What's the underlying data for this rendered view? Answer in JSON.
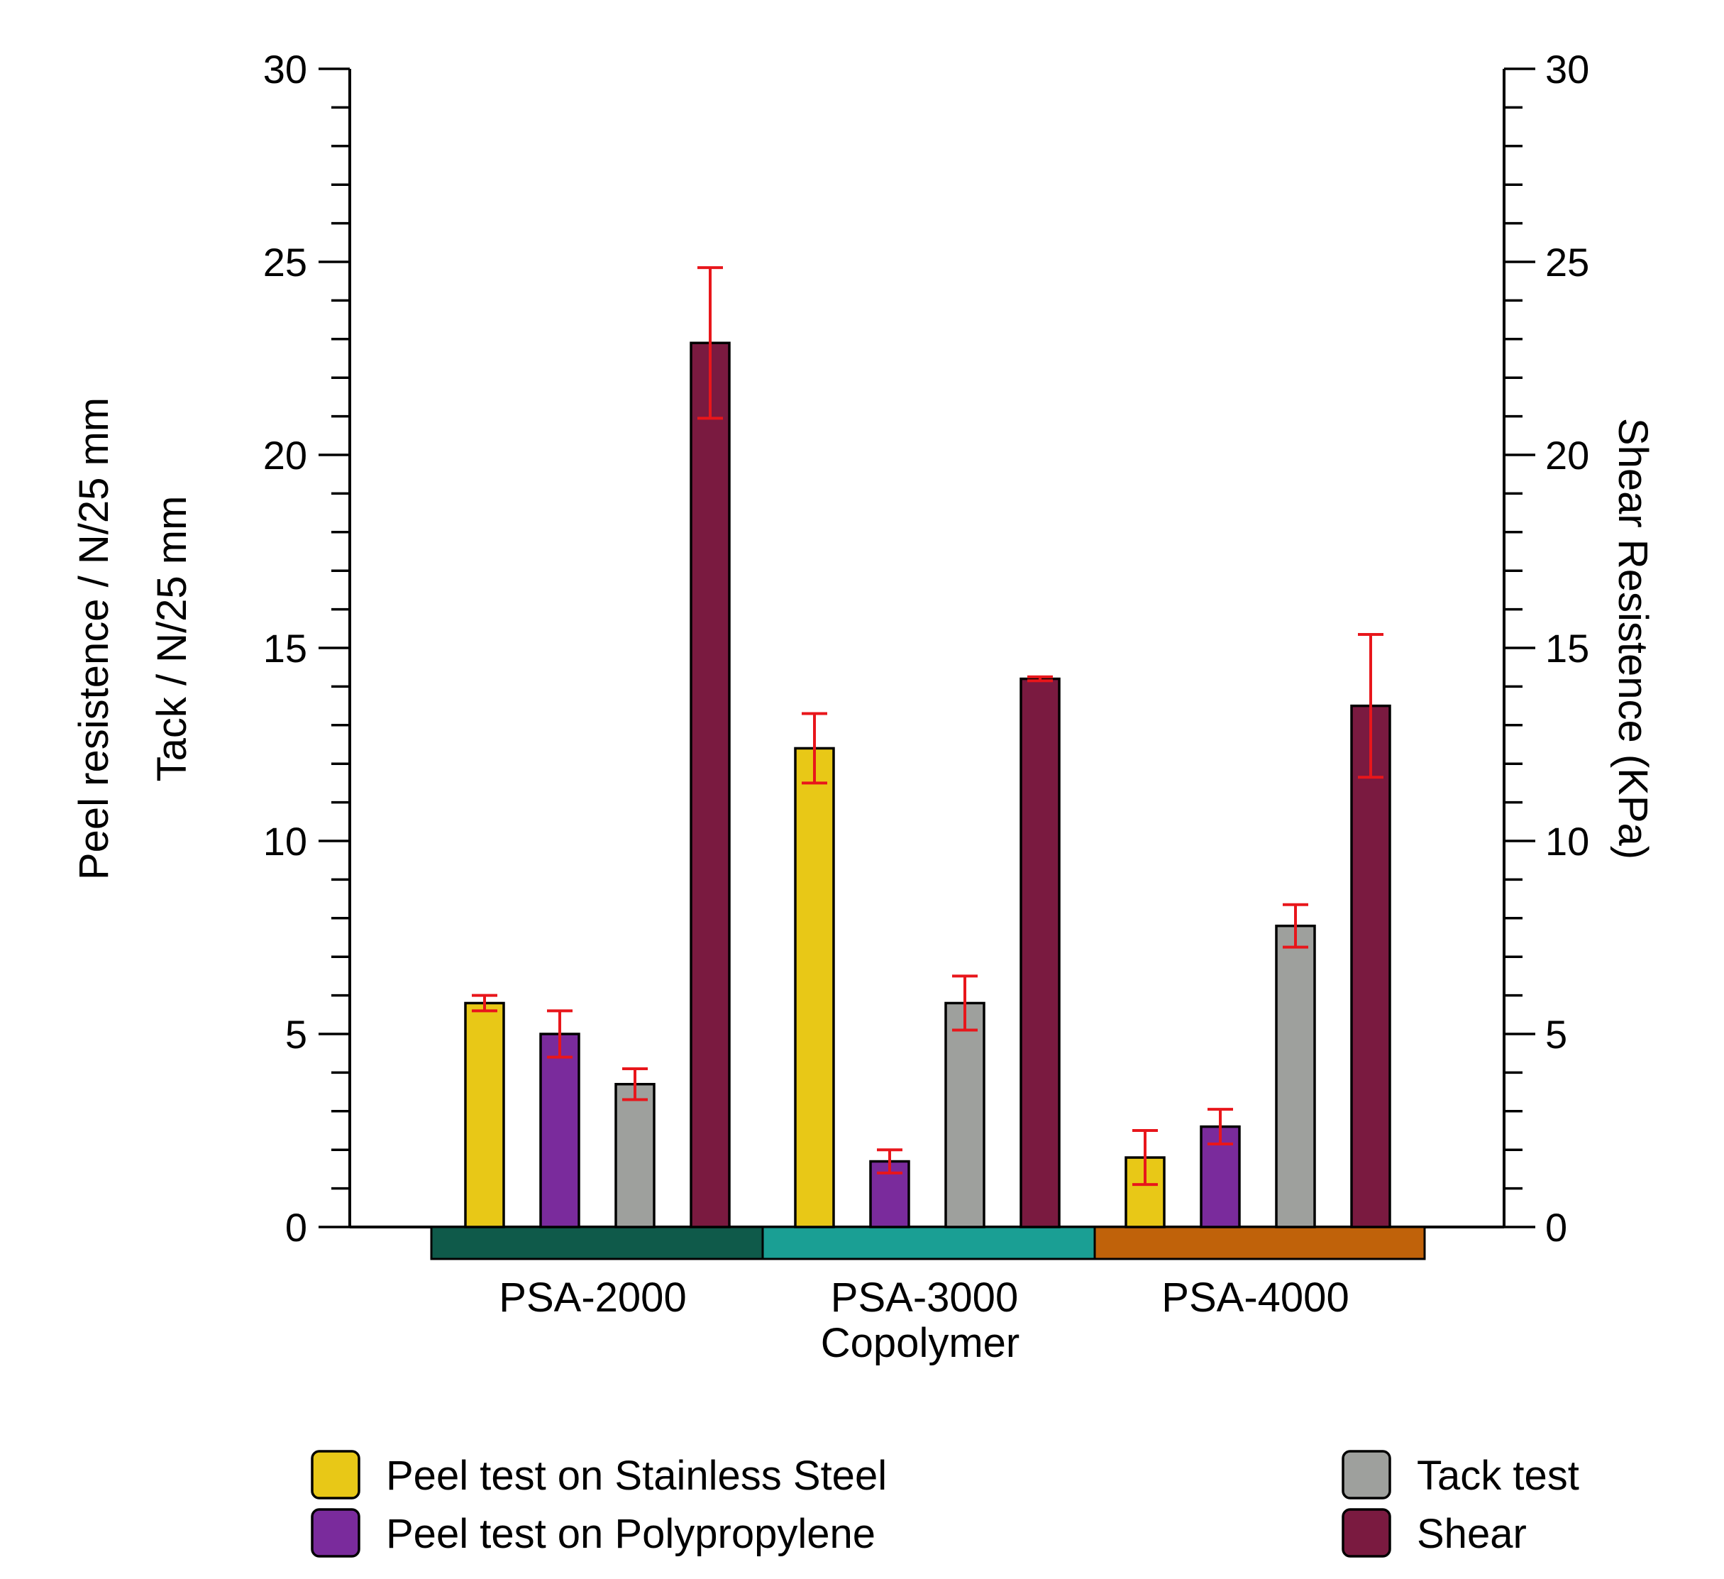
{
  "chart_data": {
    "type": "bar",
    "categories": [
      "PSA-2000",
      "PSA-3000",
      "PSA-4000"
    ],
    "category_colors": [
      "#0f5a4a",
      "#1a9f94",
      "#c0620a"
    ],
    "xlabel": "Copolymer",
    "ylabel_left_lines": [
      "Peel resistence / N/25 mm",
      "Tack / N/25 mm"
    ],
    "ylabel_right": "Shear Resistence (KPa)",
    "ylim": [
      0,
      30
    ],
    "y_ticks": [
      0,
      5,
      10,
      15,
      20,
      25,
      30
    ],
    "y_tick_labels": [
      "0",
      "5",
      "10",
      "15",
      "20",
      "25",
      "30"
    ],
    "y2lim": [
      0,
      30
    ],
    "grid": false,
    "error_bar_color": "#e8161b",
    "series": [
      {
        "name": "Peel test on Stainless Steel",
        "color": "#e8c817",
        "values": [
          5.8,
          12.4,
          1.8
        ],
        "errors": [
          0.2,
          0.9,
          0.7
        ]
      },
      {
        "name": "Peel test on Polypropylene",
        "color": "#7a2b9c",
        "values": [
          5.0,
          1.7,
          2.6
        ],
        "errors": [
          0.6,
          0.3,
          0.45
        ]
      },
      {
        "name": "Tack test",
        "color": "#9ea09d",
        "values": [
          3.7,
          5.8,
          7.8
        ],
        "errors": [
          0.4,
          0.7,
          0.55
        ]
      },
      {
        "name": "Shear",
        "color": "#7a1a40",
        "values": [
          22.9,
          14.2,
          13.5
        ],
        "errors": [
          1.95,
          0.05,
          1.85
        ]
      }
    ],
    "legend": {
      "left": [
        "Peel test on Stainless Steel",
        "Peel test on Polypropylene"
      ],
      "right": [
        "Tack test",
        "Shear"
      ]
    }
  }
}
